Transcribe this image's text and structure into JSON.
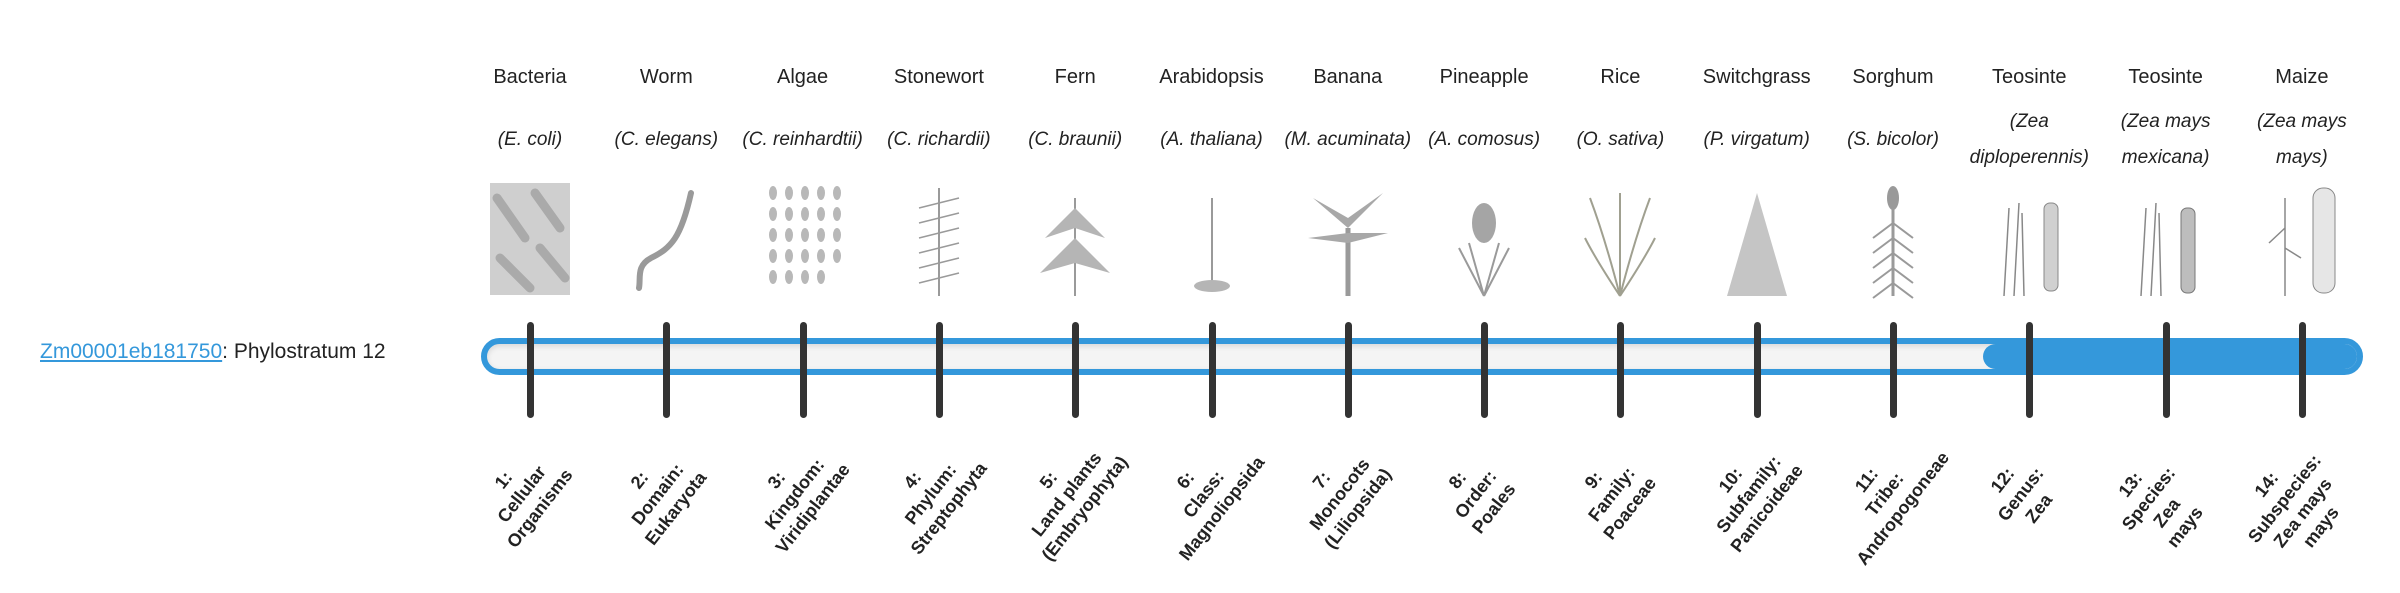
{
  "gene": {
    "id": "Zm00001eb181750",
    "suffix": ": Phylostratum 12"
  },
  "progress": {
    "current_stratum": 12,
    "total_strata": 14,
    "accent_color": "#3498db",
    "track_color": "#f4f4f4",
    "tick_color": "#333333"
  },
  "organisms": [
    {
      "common": "Bacteria",
      "species": "(E. coli)",
      "icon": "bacteria-illustration"
    },
    {
      "common": "Worm",
      "species": "(C. elegans)",
      "icon": "worm-illustration"
    },
    {
      "common": "Algae",
      "species": "(C. reinhardtii)",
      "icon": "algae-illustration"
    },
    {
      "common": "Stonewort",
      "species": "(C. richardii)",
      "icon": "stonewort-illustration"
    },
    {
      "common": "Fern",
      "species": "(C. braunii)",
      "icon": "fern-illustration"
    },
    {
      "common": "Arabidopsis",
      "species": "(A. thaliana)",
      "icon": "arabidopsis-illustration"
    },
    {
      "common": "Banana",
      "species": "(M. acuminata)",
      "icon": "banana-illustration"
    },
    {
      "common": "Pineapple",
      "species": "(A. comosus)",
      "icon": "pineapple-illustration"
    },
    {
      "common": "Rice",
      "species": "(O. sativa)",
      "icon": "rice-illustration"
    },
    {
      "common": "Switchgrass",
      "species": "(P. virgatum)",
      "icon": "switchgrass-illustration"
    },
    {
      "common": "Sorghum",
      "species": "(S. bicolor)",
      "icon": "sorghum-illustration"
    },
    {
      "common": "Teosinte",
      "species": "(Zea diploperennis)",
      "icon": "teosinte-illustration"
    },
    {
      "common": "Teosinte",
      "species": "(Zea mays mexicana)",
      "icon": "teosinte-mexicana-illustration"
    },
    {
      "common": "Maize",
      "species": "(Zea mays mays)",
      "icon": "maize-illustration"
    }
  ],
  "strata": [
    {
      "lines": [
        "1:",
        "Cellular",
        "Organisms"
      ]
    },
    {
      "lines": [
        "2:",
        "Domain:",
        "Eukaryota"
      ]
    },
    {
      "lines": [
        "3:",
        "Kingdom:",
        "Viridiplantae"
      ]
    },
    {
      "lines": [
        "4:",
        "Phylum:",
        "Streptophyta"
      ]
    },
    {
      "lines": [
        "5:",
        "Land plants",
        "(Embryophyta)"
      ]
    },
    {
      "lines": [
        "6:",
        "Class:",
        "Magnoliopsida"
      ]
    },
    {
      "lines": [
        "7:",
        "Monocots",
        "(Liliopsida)"
      ]
    },
    {
      "lines": [
        "8:",
        "Order:",
        "Poales"
      ]
    },
    {
      "lines": [
        "9:",
        "Family:",
        "Poaceae"
      ]
    },
    {
      "lines": [
        "10:",
        "Subfamily:",
        "Panicoideae"
      ]
    },
    {
      "lines": [
        "11:",
        "Tribe:",
        "Andropogoneae"
      ]
    },
    {
      "lines": [
        "12:",
        "Genus:",
        "Zea"
      ]
    },
    {
      "lines": [
        "13:",
        "Species:",
        "Zea",
        "mays"
      ]
    },
    {
      "lines": [
        "14:",
        "Subspecies:",
        "Zea mays",
        "mays"
      ]
    }
  ]
}
